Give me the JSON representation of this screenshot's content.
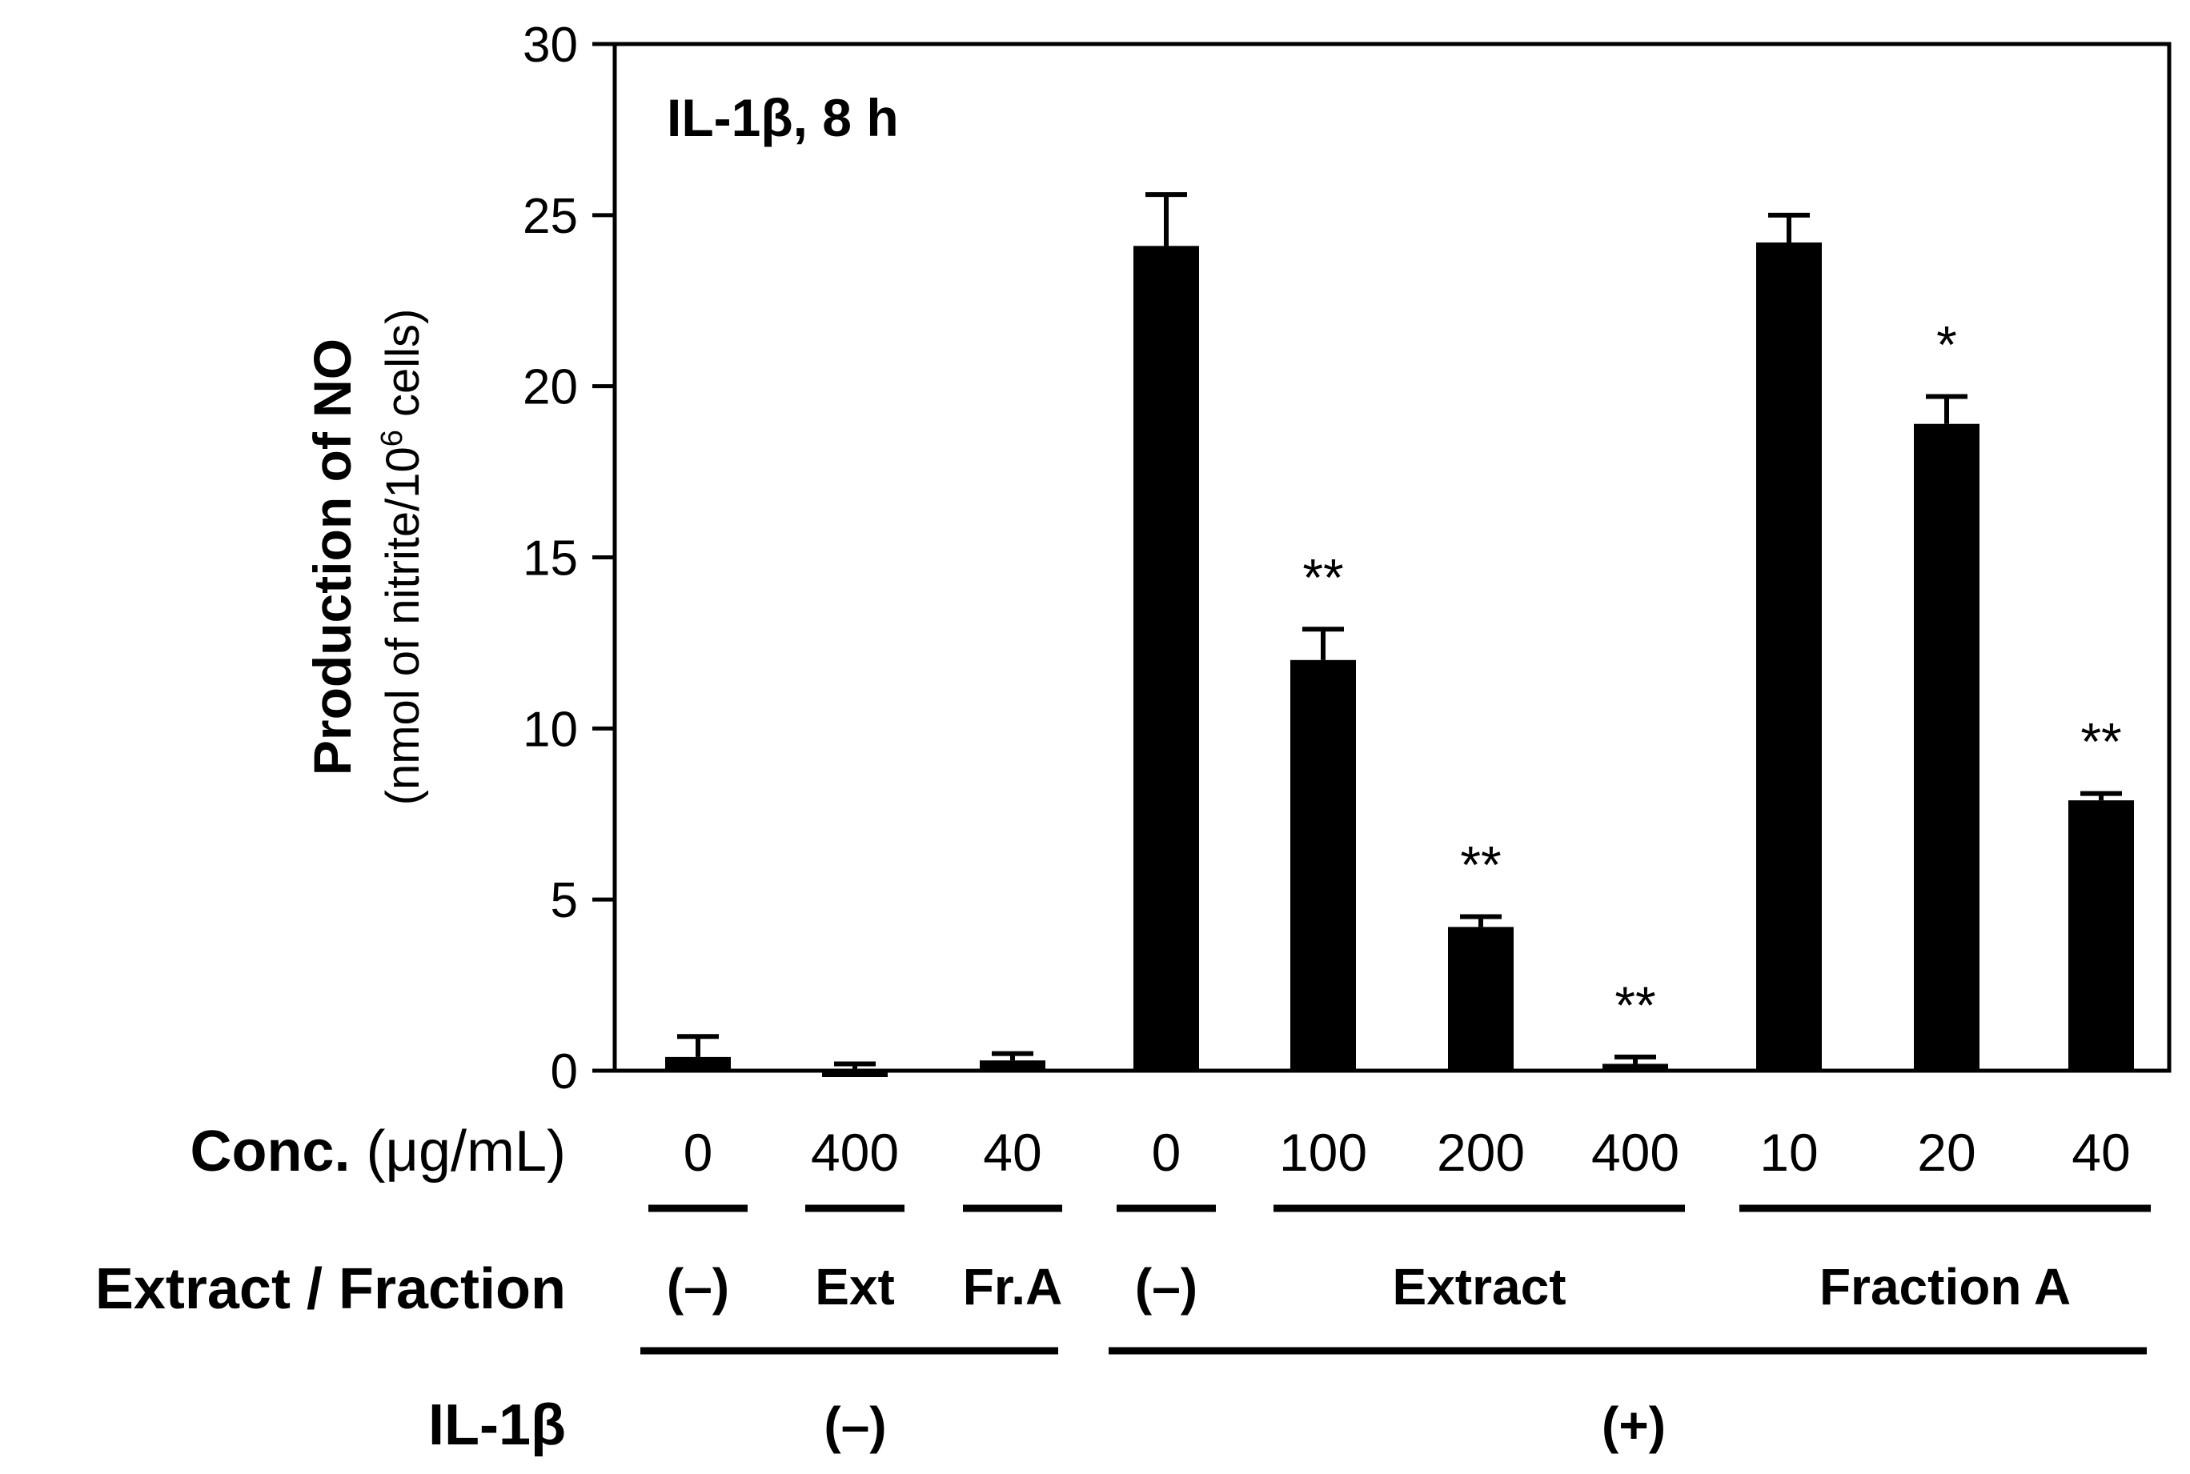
{
  "chart_data": {
    "type": "bar",
    "annotation": "IL-1β, 8 h",
    "ylabel": "Production of NO",
    "ylabel_sub_prefix": "(nmol of nitrite/10",
    "ylabel_sub_exp": "6",
    "ylabel_sub_suffix": " cells)",
    "ylim": [
      0,
      30
    ],
    "yticks": [
      0,
      5,
      10,
      15,
      20,
      25,
      30
    ],
    "color": "#000000",
    "categories": [
      {
        "conc": "0",
        "value": 0.4,
        "error": 0.6,
        "sig": ""
      },
      {
        "conc": "400",
        "value": -0.1,
        "error": 0.2,
        "sig": ""
      },
      {
        "conc": "40",
        "value": 0.3,
        "error": 0.2,
        "sig": ""
      },
      {
        "conc": "0",
        "value": 24.1,
        "error": 1.5,
        "sig": ""
      },
      {
        "conc": "100",
        "value": 12.0,
        "error": 0.9,
        "sig": "**"
      },
      {
        "conc": "200",
        "value": 4.2,
        "error": 0.3,
        "sig": "**"
      },
      {
        "conc": "400",
        "value": 0.2,
        "error": 0.2,
        "sig": "**"
      },
      {
        "conc": "10",
        "value": 24.2,
        "error": 0.8,
        "sig": ""
      },
      {
        "conc": "20",
        "value": 18.9,
        "error": 0.8,
        "sig": "*"
      },
      {
        "conc": "40",
        "value": 7.9,
        "error": 0.2,
        "sig": "**"
      }
    ],
    "row_labels": {
      "conc_bold": "Conc.",
      "conc_unit": " (μg/mL)",
      "extract": "Extract / Fraction",
      "il1b": "IL-1β"
    },
    "extract_groups": [
      {
        "label": "(–)",
        "from": 0,
        "to": 0
      },
      {
        "label": "Ext",
        "from": 1,
        "to": 1
      },
      {
        "label": "Fr.A",
        "from": 2,
        "to": 2
      },
      {
        "label": "(–)",
        "from": 3,
        "to": 3
      },
      {
        "label": "Extract",
        "from": 4,
        "to": 6
      },
      {
        "label": "Fraction A",
        "from": 7,
        "to": 9
      }
    ],
    "il1b_groups": [
      {
        "label": "(–)",
        "from": 0,
        "to": 2
      },
      {
        "label": "(+)",
        "from": 3,
        "to": 9
      }
    ]
  }
}
